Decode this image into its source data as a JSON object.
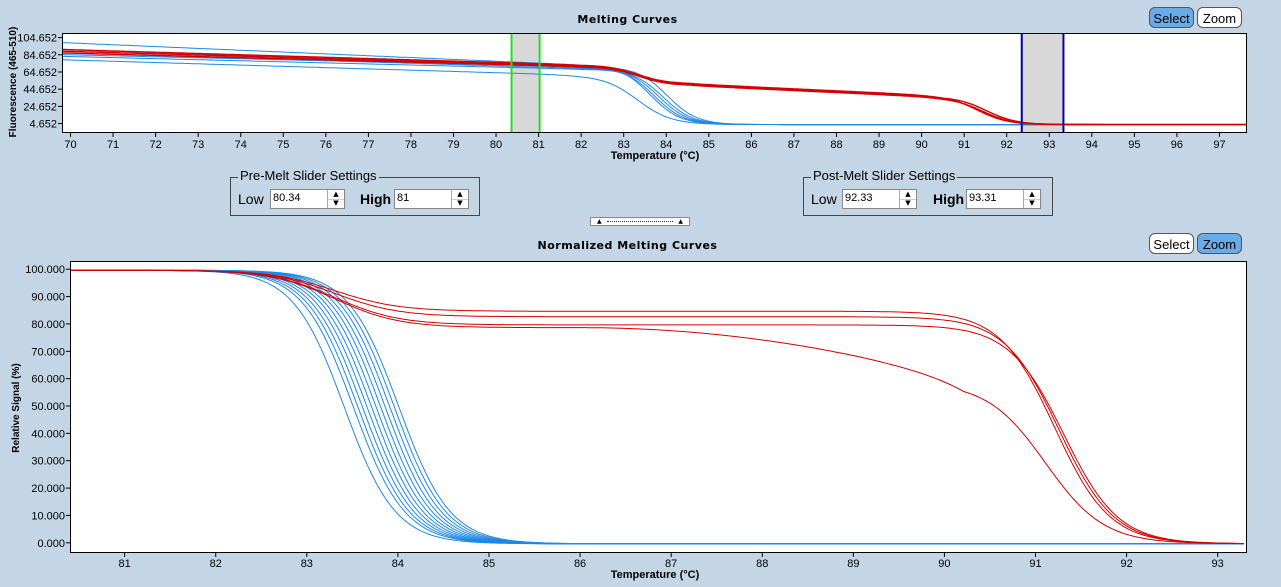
{
  "top": {
    "title": "Melting Curves",
    "select_label": "Select",
    "zoom_label": "Zoom",
    "ylabel": "Fluorescence (465-510)",
    "xlabel": "Temperature (°C)",
    "yticks": [
      "104.652",
      "84.652",
      "64.652",
      "44.652",
      "24.652",
      "4.652"
    ],
    "xticks": [
      "70",
      "71",
      "72",
      "73",
      "74",
      "75",
      "76",
      "77",
      "78",
      "79",
      "80",
      "81",
      "82",
      "83",
      "84",
      "85",
      "86",
      "87",
      "88",
      "89",
      "90",
      "91",
      "92",
      "93",
      "94",
      "95",
      "96",
      "97"
    ]
  },
  "pre": {
    "title": "Pre-Melt Slider Settings",
    "low_label": "Low",
    "low_value": "80.34",
    "high_label": "High",
    "high_value": "81"
  },
  "post": {
    "title": "Post-Melt Slider Settings",
    "low_label": "Low",
    "low_value": "92.33",
    "high_label": "High",
    "high_value": "93.31"
  },
  "bottom": {
    "title": "Normalized Melting Curves",
    "select_label": "Select",
    "zoom_label": "Zoom",
    "ylabel": "Relative Signal (%)",
    "xlabel": "Temperature (°C)",
    "yticks": [
      "100.000",
      "90.000",
      "80.000",
      "70.000",
      "60.000",
      "50.000",
      "40.000",
      "30.000",
      "20.000",
      "10.000",
      "0.000"
    ],
    "xticks": [
      "81",
      "82",
      "83",
      "84",
      "85",
      "86",
      "87",
      "88",
      "89",
      "90",
      "91",
      "92",
      "93"
    ]
  },
  "colors": {
    "blue_curve": "#1e88e5",
    "red_curve": "#d40000",
    "green_slider": "#22dd22",
    "navy_slider": "#0000aa",
    "active_btn": "#6aaae6"
  },
  "chart_data": [
    {
      "type": "line",
      "title": "Melting Curves",
      "xlabel": "Temperature (°C)",
      "ylabel": "Fluorescence (465-510)",
      "xlim": [
        69.8,
        97.6
      ],
      "ylim": [
        -4,
        110
      ],
      "pre_melt_range": [
        80.34,
        81
      ],
      "post_melt_range": [
        92.33,
        93.31
      ],
      "series": [
        {
          "name": "blue",
          "color": "#1e88e5",
          "curves": [
            {
              "start": 100,
              "mid": 74,
              "tm": 83.6,
              "w": 0.35,
              "end": 4.652
            },
            {
              "start": 92,
              "mid": 71,
              "tm": 83.7,
              "w": 0.35,
              "end": 4.652
            },
            {
              "start": 88,
              "mid": 70,
              "tm": 83.8,
              "w": 0.35,
              "end": 4.652
            },
            {
              "start": 84,
              "mid": 69,
              "tm": 83.9,
              "w": 0.35,
              "end": 4.652
            },
            {
              "start": 86,
              "mid": 72,
              "tm": 84.0,
              "w": 0.35,
              "end": 4.652
            },
            {
              "start": 80,
              "mid": 62,
              "tm": 83.3,
              "w": 0.4,
              "end": 4.652
            }
          ]
        },
        {
          "name": "red",
          "color": "#d40000",
          "curves": [
            {
              "start": 92,
              "mid": 74,
              "tm": 91.3,
              "w": 0.35,
              "end": 4.652,
              "plateau": 52,
              "plateau_end": 38
            },
            {
              "start": 90,
              "mid": 73,
              "tm": 91.4,
              "w": 0.35,
              "end": 4.652,
              "plateau": 50,
              "plateau_end": 36
            },
            {
              "start": 88,
              "mid": 72,
              "tm": 91.5,
              "w": 0.35,
              "end": 4.652,
              "plateau": 51,
              "plateau_end": 37
            }
          ]
        }
      ]
    },
    {
      "type": "line",
      "title": "Normalized Melting Curves",
      "xlabel": "Temperature (°C)",
      "ylabel": "Relative Signal (%)",
      "xlim": [
        80.4,
        93.3
      ],
      "ylim": [
        -3,
        103
      ],
      "series": [
        {
          "name": "blue",
          "color": "#1e88e5",
          "tms": [
            83.4,
            83.5,
            83.55,
            83.6,
            83.65,
            83.7,
            83.75,
            83.8,
            83.85,
            83.9,
            83.95,
            84.0
          ],
          "width": 0.28
        },
        {
          "name": "red",
          "color": "#d40000",
          "curves": [
            {
              "plateau": 85,
              "tm": 91.2,
              "w": 0.3
            },
            {
              "plateau": 83,
              "tm": 91.25,
              "w": 0.3
            },
            {
              "plateau": 80,
              "tm": 91.3,
              "w": 0.3
            },
            {
              "plateau": 79,
              "tm": 91.1,
              "w": 0.32,
              "slope": 20
            }
          ]
        }
      ]
    }
  ]
}
